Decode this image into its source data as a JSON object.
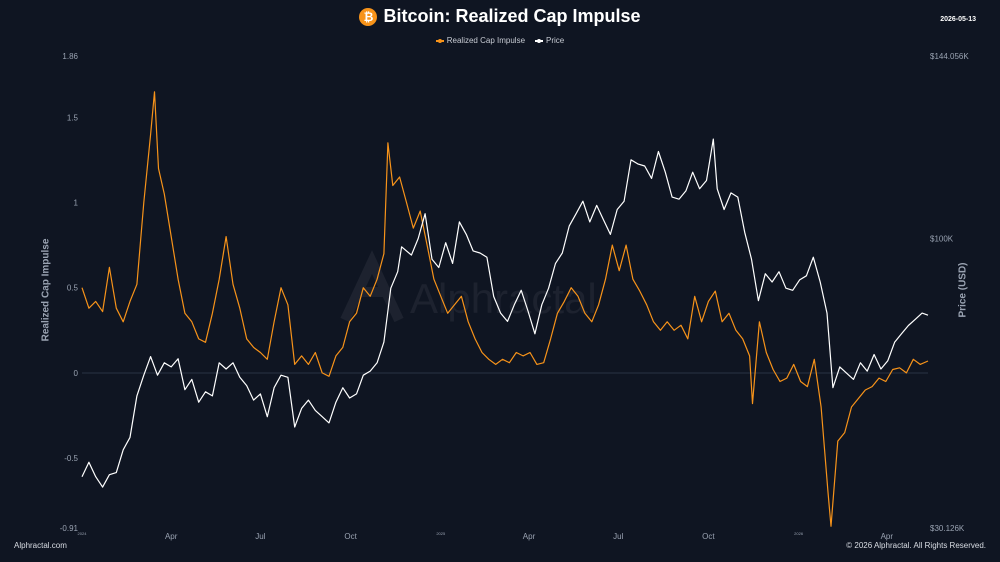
{
  "header": {
    "title": "Bitcoin: Realized Cap Impulse",
    "date": "2026-05-13"
  },
  "legend": {
    "items": [
      {
        "label": "Realized Cap Impulse",
        "color": "#f7931a"
      },
      {
        "label": "Price",
        "color": "#ffffff"
      }
    ]
  },
  "watermark": "Alphractal",
  "footer": {
    "left": "Alphractal.com",
    "right": "© 2026 Alphractal. All Rights Reserved."
  },
  "chart_data": {
    "type": "line",
    "title": "Bitcoin: Realized Cap Impulse",
    "ylabel_left": "Realized Cap Impulse",
    "ylabel_right": "Price (USD)",
    "x_range": [
      "2024-01-01",
      "2026-05-13"
    ],
    "ylim_left": [
      -0.91,
      1.86
    ],
    "ylim_right": [
      30126,
      144056
    ],
    "y_ticks_left": [
      "1.86",
      "1.5",
      "1",
      "0.5",
      "0",
      "-0.5",
      "-0.91"
    ],
    "y_ticks_right": [
      "$144.056K",
      "$100K",
      "$30.126K"
    ],
    "x_ticks": [
      {
        "date": "2024-01-01",
        "label": "2024",
        "small": true
      },
      {
        "date": "2024-04-01",
        "label": "Apr"
      },
      {
        "date": "2024-07-01",
        "label": "Jul"
      },
      {
        "date": "2024-10-01",
        "label": "Oct"
      },
      {
        "date": "2025-01-01",
        "label": "2025",
        "small": true
      },
      {
        "date": "2025-04-01",
        "label": "Apr"
      },
      {
        "date": "2025-07-01",
        "label": "Jul"
      },
      {
        "date": "2025-10-01",
        "label": "Oct"
      },
      {
        "date": "2026-01-01",
        "label": "2026",
        "small": true
      },
      {
        "date": "2026-04-01",
        "label": "Apr"
      }
    ],
    "grid": false,
    "legend_position": "top-center",
    "series": [
      {
        "name": "Realized Cap Impulse",
        "axis": "left",
        "color": "#f7931a",
        "points": [
          [
            "2024-01-01",
            0.5
          ],
          [
            "2024-01-08",
            0.38
          ],
          [
            "2024-01-15",
            0.42
          ],
          [
            "2024-01-22",
            0.36
          ],
          [
            "2024-01-29",
            0.62
          ],
          [
            "2024-02-05",
            0.38
          ],
          [
            "2024-02-12",
            0.3
          ],
          [
            "2024-02-19",
            0.42
          ],
          [
            "2024-02-26",
            0.52
          ],
          [
            "2024-03-04",
            1.0
          ],
          [
            "2024-03-11",
            1.4
          ],
          [
            "2024-03-15",
            1.65
          ],
          [
            "2024-03-19",
            1.2
          ],
          [
            "2024-03-25",
            1.05
          ],
          [
            "2024-04-01",
            0.8
          ],
          [
            "2024-04-08",
            0.55
          ],
          [
            "2024-04-15",
            0.35
          ],
          [
            "2024-04-22",
            0.3
          ],
          [
            "2024-04-29",
            0.2
          ],
          [
            "2024-05-06",
            0.18
          ],
          [
            "2024-05-13",
            0.35
          ],
          [
            "2024-05-20",
            0.55
          ],
          [
            "2024-05-27",
            0.8
          ],
          [
            "2024-06-03",
            0.52
          ],
          [
            "2024-06-10",
            0.38
          ],
          [
            "2024-06-17",
            0.2
          ],
          [
            "2024-06-24",
            0.15
          ],
          [
            "2024-07-01",
            0.12
          ],
          [
            "2024-07-08",
            0.08
          ],
          [
            "2024-07-15",
            0.3
          ],
          [
            "2024-07-22",
            0.5
          ],
          [
            "2024-07-29",
            0.4
          ],
          [
            "2024-08-05",
            0.05
          ],
          [
            "2024-08-12",
            0.1
          ],
          [
            "2024-08-19",
            0.05
          ],
          [
            "2024-08-26",
            0.12
          ],
          [
            "2024-09-02",
            0.0
          ],
          [
            "2024-09-09",
            -0.02
          ],
          [
            "2024-09-16",
            0.1
          ],
          [
            "2024-09-23",
            0.15
          ],
          [
            "2024-09-30",
            0.3
          ],
          [
            "2024-10-07",
            0.35
          ],
          [
            "2024-10-14",
            0.5
          ],
          [
            "2024-10-21",
            0.45
          ],
          [
            "2024-10-28",
            0.55
          ],
          [
            "2024-11-04",
            0.7
          ],
          [
            "2024-11-08",
            1.35
          ],
          [
            "2024-11-13",
            1.1
          ],
          [
            "2024-11-20",
            1.15
          ],
          [
            "2024-11-27",
            1.0
          ],
          [
            "2024-12-04",
            0.85
          ],
          [
            "2024-12-11",
            0.95
          ],
          [
            "2024-12-18",
            0.75
          ],
          [
            "2024-12-25",
            0.55
          ],
          [
            "2025-01-01",
            0.45
          ],
          [
            "2025-01-08",
            0.35
          ],
          [
            "2025-01-15",
            0.4
          ],
          [
            "2025-01-22",
            0.45
          ],
          [
            "2025-01-29",
            0.3
          ],
          [
            "2025-02-05",
            0.2
          ],
          [
            "2025-02-12",
            0.12
          ],
          [
            "2025-02-19",
            0.08
          ],
          [
            "2025-02-26",
            0.05
          ],
          [
            "2025-03-05",
            0.08
          ],
          [
            "2025-03-12",
            0.06
          ],
          [
            "2025-03-19",
            0.12
          ],
          [
            "2025-03-26",
            0.1
          ],
          [
            "2025-04-02",
            0.12
          ],
          [
            "2025-04-09",
            0.05
          ],
          [
            "2025-04-16",
            0.06
          ],
          [
            "2025-04-23",
            0.2
          ],
          [
            "2025-04-30",
            0.35
          ],
          [
            "2025-05-07",
            0.42
          ],
          [
            "2025-05-14",
            0.5
          ],
          [
            "2025-05-21",
            0.45
          ],
          [
            "2025-05-28",
            0.35
          ],
          [
            "2025-06-04",
            0.3
          ],
          [
            "2025-06-11",
            0.4
          ],
          [
            "2025-06-18",
            0.55
          ],
          [
            "2025-06-25",
            0.75
          ],
          [
            "2025-07-02",
            0.6
          ],
          [
            "2025-07-09",
            0.75
          ],
          [
            "2025-07-16",
            0.55
          ],
          [
            "2025-07-23",
            0.48
          ],
          [
            "2025-07-30",
            0.4
          ],
          [
            "2025-08-06",
            0.3
          ],
          [
            "2025-08-13",
            0.25
          ],
          [
            "2025-08-20",
            0.3
          ],
          [
            "2025-08-27",
            0.25
          ],
          [
            "2025-09-03",
            0.28
          ],
          [
            "2025-09-10",
            0.2
          ],
          [
            "2025-09-17",
            0.45
          ],
          [
            "2025-09-24",
            0.3
          ],
          [
            "2025-10-01",
            0.42
          ],
          [
            "2025-10-08",
            0.48
          ],
          [
            "2025-10-15",
            0.3
          ],
          [
            "2025-10-22",
            0.35
          ],
          [
            "2025-10-29",
            0.25
          ],
          [
            "2025-11-05",
            0.2
          ],
          [
            "2025-11-12",
            0.1
          ],
          [
            "2025-11-15",
            -0.18
          ],
          [
            "2025-11-22",
            0.3
          ],
          [
            "2025-11-29",
            0.12
          ],
          [
            "2025-12-06",
            0.02
          ],
          [
            "2025-12-13",
            -0.05
          ],
          [
            "2025-12-20",
            -0.03
          ],
          [
            "2025-12-27",
            0.05
          ],
          [
            "2026-01-03",
            -0.05
          ],
          [
            "2026-01-10",
            -0.08
          ],
          [
            "2026-01-17",
            0.08
          ],
          [
            "2026-01-24",
            -0.2
          ],
          [
            "2026-01-31",
            -0.7
          ],
          [
            "2026-02-03",
            -0.9
          ],
          [
            "2026-02-10",
            -0.4
          ],
          [
            "2026-02-17",
            -0.35
          ],
          [
            "2026-02-24",
            -0.2
          ],
          [
            "2026-03-03",
            -0.15
          ],
          [
            "2026-03-10",
            -0.1
          ],
          [
            "2026-03-17",
            -0.08
          ],
          [
            "2026-03-24",
            -0.03
          ],
          [
            "2026-03-31",
            -0.05
          ],
          [
            "2026-04-07",
            0.02
          ],
          [
            "2026-04-14",
            0.03
          ],
          [
            "2026-04-21",
            0.0
          ],
          [
            "2026-04-28",
            0.08
          ],
          [
            "2026-05-05",
            0.05
          ],
          [
            "2026-05-13",
            0.07
          ]
        ]
      },
      {
        "name": "Price",
        "axis": "right",
        "color": "#ffffff",
        "points": [
          [
            "2024-01-01",
            42500
          ],
          [
            "2024-01-08",
            46000
          ],
          [
            "2024-01-15",
            42500
          ],
          [
            "2024-01-22",
            40000
          ],
          [
            "2024-01-29",
            43000
          ],
          [
            "2024-02-05",
            43500
          ],
          [
            "2024-02-12",
            49000
          ],
          [
            "2024-02-19",
            52000
          ],
          [
            "2024-02-26",
            62000
          ],
          [
            "2024-03-04",
            67000
          ],
          [
            "2024-03-11",
            71500
          ],
          [
            "2024-03-18",
            67000
          ],
          [
            "2024-03-25",
            70000
          ],
          [
            "2024-04-01",
            69000
          ],
          [
            "2024-04-08",
            71000
          ],
          [
            "2024-04-15",
            63500
          ],
          [
            "2024-04-22",
            66000
          ],
          [
            "2024-04-29",
            60500
          ],
          [
            "2024-05-06",
            63000
          ],
          [
            "2024-05-13",
            62000
          ],
          [
            "2024-05-20",
            70000
          ],
          [
            "2024-05-27",
            68500
          ],
          [
            "2024-06-03",
            70000
          ],
          [
            "2024-06-10",
            66500
          ],
          [
            "2024-06-17",
            64500
          ],
          [
            "2024-06-24",
            61000
          ],
          [
            "2024-07-01",
            62500
          ],
          [
            "2024-07-08",
            57000
          ],
          [
            "2024-07-15",
            64000
          ],
          [
            "2024-07-22",
            67000
          ],
          [
            "2024-07-29",
            66500
          ],
          [
            "2024-08-05",
            54500
          ],
          [
            "2024-08-12",
            59000
          ],
          [
            "2024-08-19",
            61000
          ],
          [
            "2024-08-26",
            58500
          ],
          [
            "2024-09-02",
            57000
          ],
          [
            "2024-09-09",
            55500
          ],
          [
            "2024-09-16",
            60500
          ],
          [
            "2024-09-23",
            64000
          ],
          [
            "2024-09-30",
            61500
          ],
          [
            "2024-10-07",
            62500
          ],
          [
            "2024-10-14",
            67000
          ],
          [
            "2024-10-21",
            68000
          ],
          [
            "2024-10-28",
            70000
          ],
          [
            "2024-11-04",
            75000
          ],
          [
            "2024-11-11",
            88000
          ],
          [
            "2024-11-18",
            92000
          ],
          [
            "2024-11-22",
            98000
          ],
          [
            "2024-12-02",
            96000
          ],
          [
            "2024-12-09",
            100000
          ],
          [
            "2024-12-16",
            106000
          ],
          [
            "2024-12-23",
            95000
          ],
          [
            "2024-12-30",
            93000
          ],
          [
            "2025-01-06",
            99000
          ],
          [
            "2025-01-13",
            94000
          ],
          [
            "2025-01-20",
            104000
          ],
          [
            "2025-01-27",
            101000
          ],
          [
            "2025-02-03",
            97000
          ],
          [
            "2025-02-10",
            96500
          ],
          [
            "2025-02-17",
            95500
          ],
          [
            "2025-02-24",
            86000
          ],
          [
            "2025-03-03",
            82000
          ],
          [
            "2025-03-10",
            80000
          ],
          [
            "2025-03-17",
            84000
          ],
          [
            "2025-03-24",
            87500
          ],
          [
            "2025-03-31",
            82500
          ],
          [
            "2025-04-07",
            77000
          ],
          [
            "2025-04-14",
            84000
          ],
          [
            "2025-04-21",
            88000
          ],
          [
            "2025-04-28",
            94000
          ],
          [
            "2025-05-05",
            96500
          ],
          [
            "2025-05-12",
            103000
          ],
          [
            "2025-05-19",
            106000
          ],
          [
            "2025-05-26",
            109000
          ],
          [
            "2025-06-02",
            104000
          ],
          [
            "2025-06-09",
            108000
          ],
          [
            "2025-06-16",
            104500
          ],
          [
            "2025-06-23",
            101000
          ],
          [
            "2025-06-30",
            107000
          ],
          [
            "2025-07-07",
            109000
          ],
          [
            "2025-07-14",
            119000
          ],
          [
            "2025-07-21",
            118000
          ],
          [
            "2025-07-28",
            117500
          ],
          [
            "2025-08-04",
            114500
          ],
          [
            "2025-08-11",
            121000
          ],
          [
            "2025-08-18",
            116000
          ],
          [
            "2025-08-25",
            110000
          ],
          [
            "2025-09-01",
            109500
          ],
          [
            "2025-09-08",
            111500
          ],
          [
            "2025-09-15",
            116000
          ],
          [
            "2025-09-22",
            112000
          ],
          [
            "2025-09-29",
            114000
          ],
          [
            "2025-10-06",
            124000
          ],
          [
            "2025-10-10",
            112000
          ],
          [
            "2025-10-17",
            107000
          ],
          [
            "2025-10-24",
            111000
          ],
          [
            "2025-10-31",
            110000
          ],
          [
            "2025-11-07",
            101500
          ],
          [
            "2025-11-14",
            95000
          ],
          [
            "2025-11-21",
            85000
          ],
          [
            "2025-11-28",
            91500
          ],
          [
            "2025-12-05",
            89500
          ],
          [
            "2025-12-12",
            92000
          ],
          [
            "2025-12-19",
            88000
          ],
          [
            "2025-12-26",
            87500
          ],
          [
            "2026-01-02",
            90000
          ],
          [
            "2026-01-09",
            91000
          ],
          [
            "2026-01-16",
            95500
          ],
          [
            "2026-01-23",
            89500
          ],
          [
            "2026-01-30",
            82000
          ],
          [
            "2026-02-05",
            64000
          ],
          [
            "2026-02-12",
            69000
          ],
          [
            "2026-02-19",
            67500
          ],
          [
            "2026-02-26",
            66000
          ],
          [
            "2026-03-05",
            70000
          ],
          [
            "2026-03-12",
            68000
          ],
          [
            "2026-03-19",
            72000
          ],
          [
            "2026-03-26",
            68500
          ],
          [
            "2026-04-02",
            70500
          ],
          [
            "2026-04-09",
            75000
          ],
          [
            "2026-04-16",
            77000
          ],
          [
            "2026-04-23",
            79000
          ],
          [
            "2026-04-30",
            80500
          ],
          [
            "2026-05-07",
            82000
          ],
          [
            "2026-05-13",
            81500
          ]
        ]
      }
    ]
  }
}
